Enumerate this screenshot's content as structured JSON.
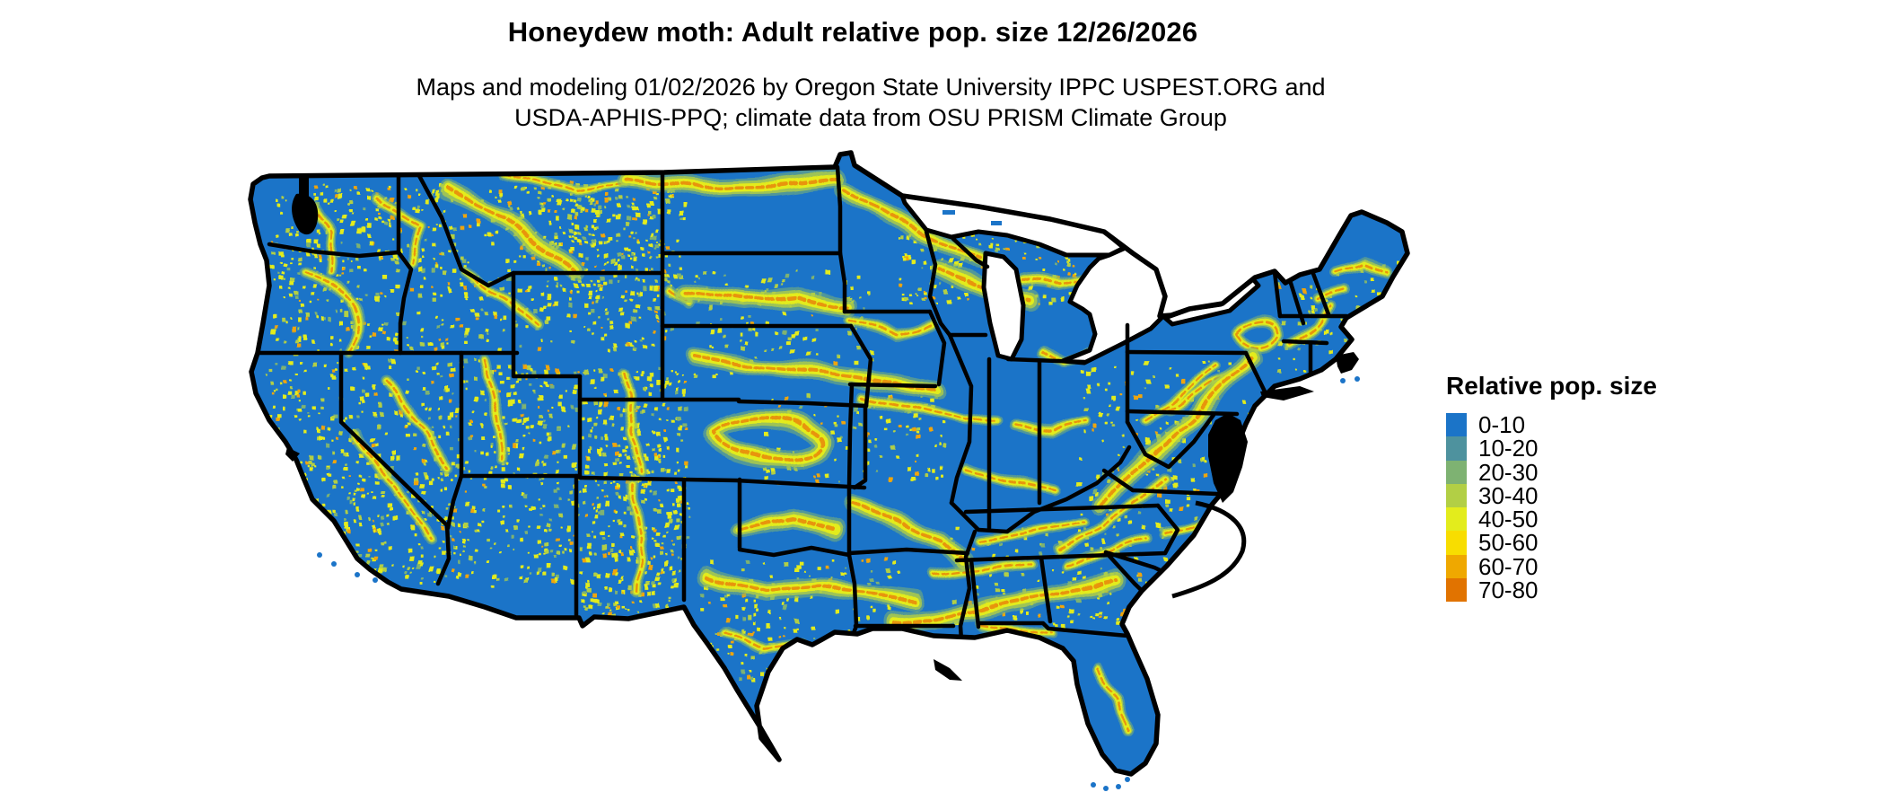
{
  "header": {
    "title": "Honeydew moth: Adult relative pop. size 12/26/2026",
    "subtitle_line1": "Maps and modeling 01/02/2026 by Oregon State University IPPC USPEST.ORG and",
    "subtitle_line2": "USDA-APHIS-PPQ; climate data from OSU PRISM Climate Group"
  },
  "legend": {
    "title": "Relative pop. size",
    "items": [
      {
        "label": "0-10",
        "color": "#1b74c8"
      },
      {
        "label": "10-20",
        "color": "#4e929e"
      },
      {
        "label": "20-30",
        "color": "#7eb272"
      },
      {
        "label": "30-40",
        "color": "#b2cf45"
      },
      {
        "label": "40-50",
        "color": "#e3ec1c"
      },
      {
        "label": "50-60",
        "color": "#f8dd00"
      },
      {
        "label": "60-70",
        "color": "#efa800"
      },
      {
        "label": "70-80",
        "color": "#e17300"
      }
    ]
  },
  "map": {
    "base_color": "#1b74c8",
    "border_color": "#000000",
    "lake_color": "#ffffff",
    "background_color": "#ffffff"
  }
}
